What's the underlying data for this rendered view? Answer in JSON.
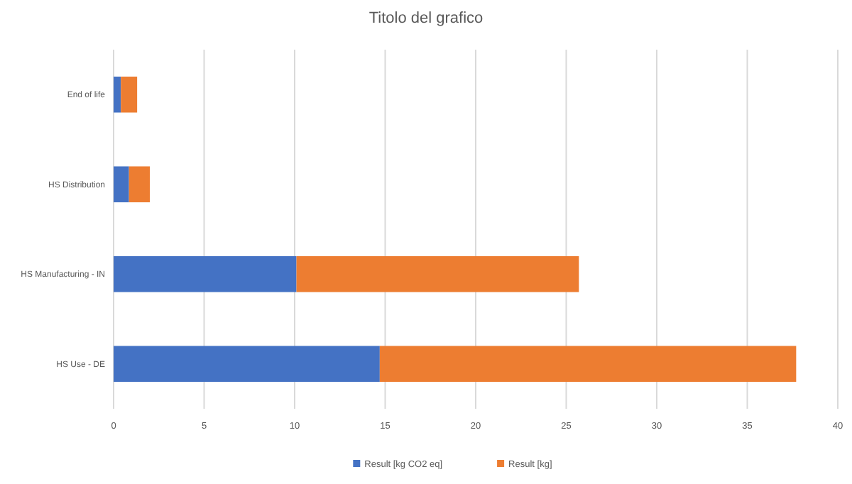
{
  "chart_data": {
    "type": "bar",
    "title": "Titolo del grafico",
    "orientation": "horizontal",
    "stacked": true,
    "categories": [
      "End of life",
      "HS Distribution",
      "HS Manufacturing - IN",
      "HS Use - DE"
    ],
    "series": [
      {
        "name": "Result [kg CO2 eq]",
        "color": "#4472c4",
        "values": [
          0.4,
          0.85,
          10.1,
          14.7
        ]
      },
      {
        "name": "Result [kg]",
        "color": "#ed7d31",
        "values": [
          0.9,
          1.15,
          15.6,
          23.0
        ]
      }
    ],
    "xlim": [
      0,
      40
    ],
    "xticks": [
      0,
      5,
      10,
      15,
      20,
      25,
      30,
      35,
      40
    ],
    "grid": "x",
    "legend": "bottom"
  }
}
